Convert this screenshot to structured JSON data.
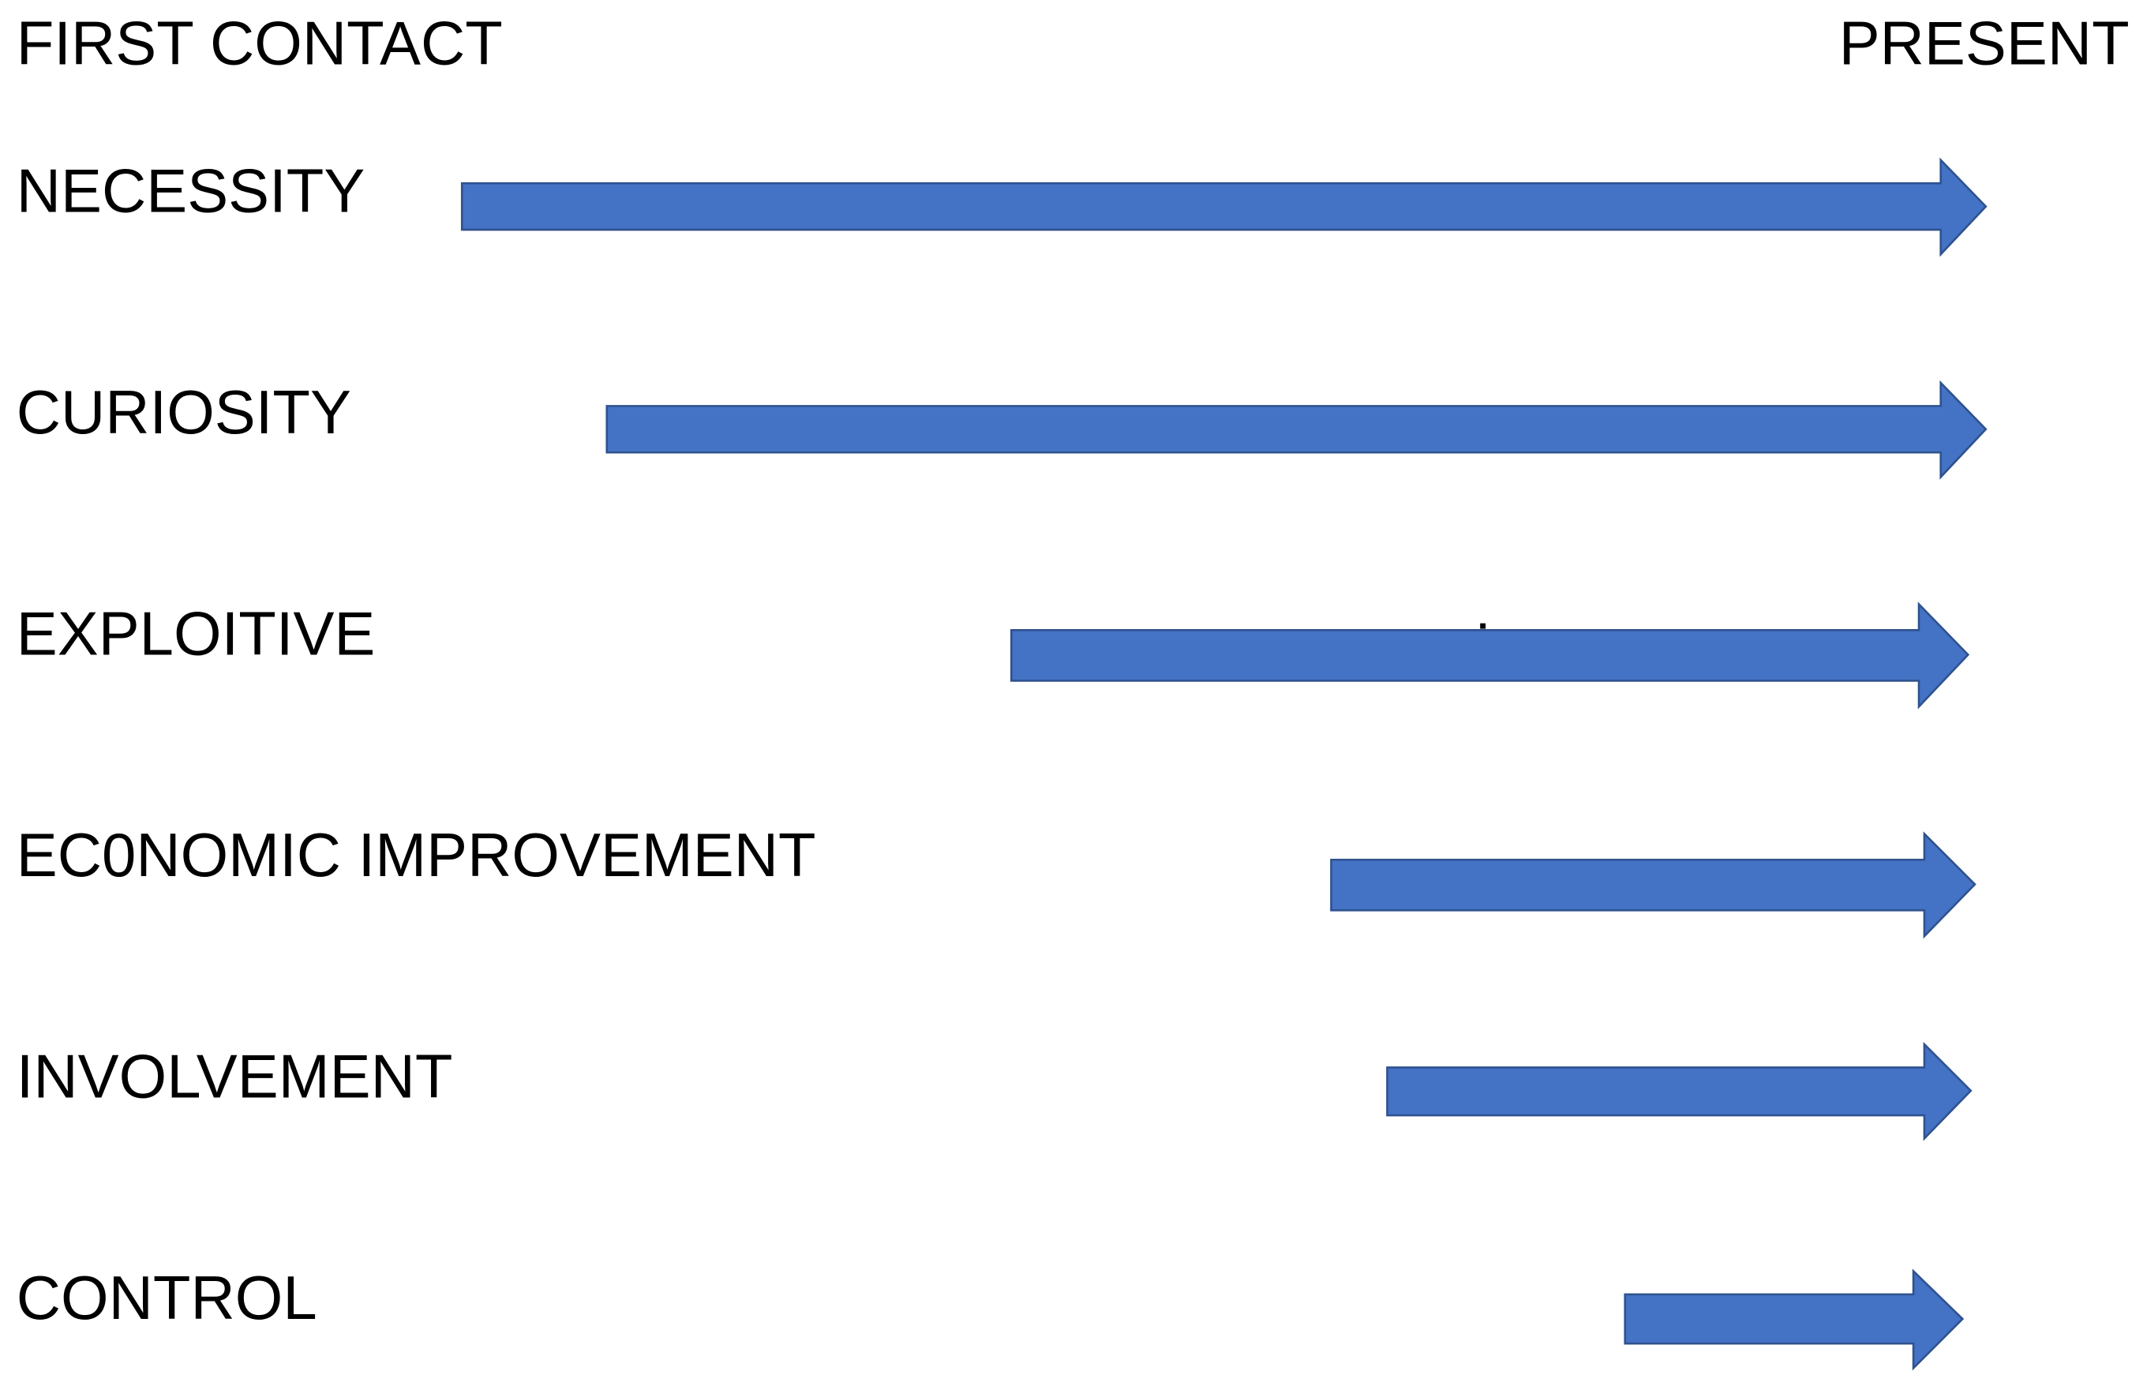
{
  "header": {
    "left": "FIRST CONTACT",
    "right": "PRESENT"
  },
  "rows": [
    {
      "label": "NECESSITY"
    },
    {
      "label": "CURIOSITY"
    },
    {
      "label": "EXPLOITIVE"
    },
    {
      "label": "EC0NOMIC IMPROVEMENT"
    },
    {
      "label": "INVOLVEMENT"
    },
    {
      "label": "CONTROL"
    }
  ]
}
